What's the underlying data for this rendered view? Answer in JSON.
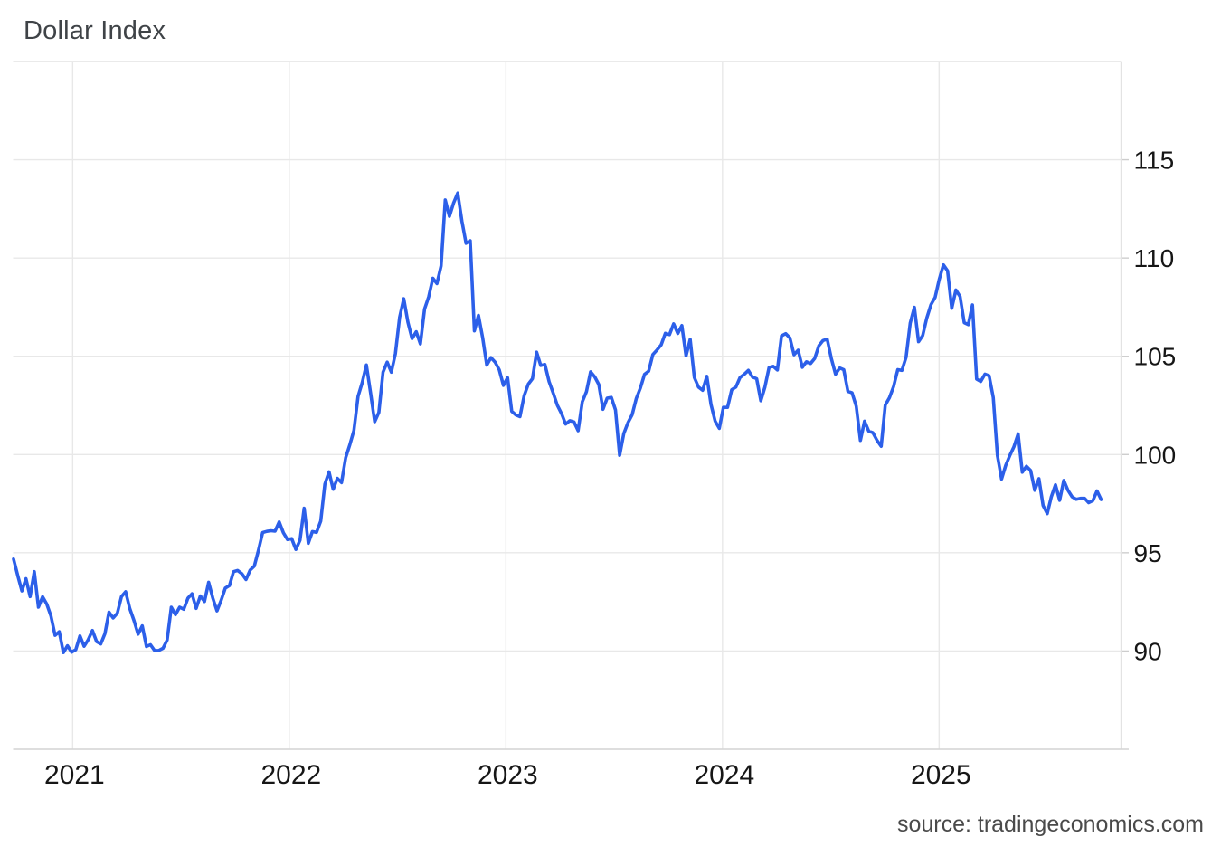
{
  "chart_data": {
    "type": "line",
    "title": "Dollar Index",
    "source": "source: tradingeconomics.com",
    "legend": "none",
    "grid": true,
    "x_start": 2020.727,
    "x_step_days": 7,
    "xlim": [
      2020.725,
      2025.84
    ],
    "ylim": [
      85,
      120
    ],
    "x_ticks": [
      2021,
      2022,
      2023,
      2024,
      2025
    ],
    "y_ticks": [
      90,
      95,
      100,
      105,
      110,
      115
    ],
    "colors": {
      "line": "#2c5fe9",
      "grid": "#e8e8e8",
      "border": "#e3e3e3",
      "axis_line": "#d4d4d4",
      "tick": "#cdcdcd",
      "axis_text": "#161616",
      "title_text": "#3f4347",
      "source_text": "#4a4a4a",
      "background": "#ffffff"
    },
    "series": [
      {
        "name": "Dollar Index",
        "color": "#2c5fe9",
        "values": [
          94.68,
          93.84,
          93.06,
          93.68,
          92.77,
          94.04,
          92.23,
          92.76,
          92.39,
          91.79,
          90.8,
          90.98,
          89.92,
          90.27,
          89.94,
          90.07,
          90.77,
          90.24,
          90.58,
          91.04,
          90.48,
          90.36,
          90.88,
          91.98,
          91.68,
          91.92,
          92.77,
          93.02,
          92.16,
          91.56,
          90.86,
          91.28,
          90.23,
          90.32,
          90.02,
          90.03,
          90.14,
          90.56,
          92.23,
          91.85,
          92.23,
          92.13,
          92.69,
          92.91,
          92.17,
          92.8,
          92.52,
          93.5,
          92.69,
          92.04,
          92.58,
          93.2,
          93.33,
          94.04,
          94.1,
          93.94,
          93.64,
          94.12,
          94.32,
          95.13,
          96.03,
          96.09,
          96.12,
          96.1,
          96.57,
          96.02,
          95.67,
          95.72,
          95.17,
          95.64,
          97.27,
          95.48,
          96.08,
          96.04,
          96.61,
          98.5,
          99.12,
          98.23,
          98.79,
          98.57,
          99.84,
          100.5,
          101.22,
          102.96,
          103.66,
          104.56,
          103.15,
          101.67,
          102.14,
          104.19,
          104.7,
          104.19,
          105.14,
          106.97,
          107.93,
          106.73,
          105.9,
          106.25,
          105.63,
          107.4,
          108.03,
          108.97,
          108.7,
          109.6,
          112.96,
          112.12,
          112.8,
          113.31,
          111.88,
          110.75,
          110.88,
          106.29,
          107.08,
          105.96,
          104.55,
          104.93,
          104.7,
          104.31,
          103.52,
          103.91,
          102.2,
          102.01,
          101.93,
          102.99,
          103.58,
          103.86,
          105.21,
          104.53,
          104.58,
          103.71,
          103.12,
          102.51,
          102.09,
          101.55,
          101.72,
          101.66,
          101.21,
          102.68,
          103.2,
          104.21,
          103.95,
          103.56,
          102.3,
          102.87,
          102.91,
          102.27,
          99.96,
          101.07,
          101.62,
          102.02,
          102.85,
          103.38,
          104.08,
          104.24,
          105.09,
          105.32,
          105.58,
          106.17,
          106.1,
          106.65,
          106.16,
          106.56,
          105.02,
          105.86,
          103.92,
          103.43,
          103.27,
          103.98,
          102.55,
          101.7,
          101.33,
          102.4,
          102.4,
          103.29,
          103.43,
          103.92,
          104.08,
          104.28,
          103.94,
          103.86,
          102.74,
          103.43,
          104.43,
          104.49,
          104.3,
          106.04,
          106.15,
          105.94,
          105.08,
          105.31,
          104.44,
          104.72,
          104.63,
          104.89,
          105.54,
          105.8,
          105.87,
          104.88,
          104.09,
          104.4,
          104.32,
          103.21,
          103.14,
          102.46,
          100.72,
          101.7,
          101.19,
          101.11,
          100.72,
          100.42,
          102.52,
          102.89,
          103.46,
          104.32,
          104.28,
          104.95,
          106.69,
          107.49,
          105.74,
          106.06,
          106.95,
          107.62,
          108.0,
          108.92,
          109.65,
          109.35,
          107.44,
          108.37,
          108.04,
          106.71,
          106.61,
          107.61,
          103.84,
          103.72,
          104.09,
          104.01,
          102.9,
          99.95,
          98.75,
          99.45,
          99.95,
          100.4,
          101.05,
          99.1,
          99.4,
          99.19,
          98.18,
          98.77,
          97.4,
          96.99,
          97.85,
          98.46,
          97.67,
          98.68,
          98.18,
          97.85,
          97.72,
          97.77,
          97.77,
          97.55,
          97.65,
          98.15,
          97.71
        ]
      }
    ]
  }
}
